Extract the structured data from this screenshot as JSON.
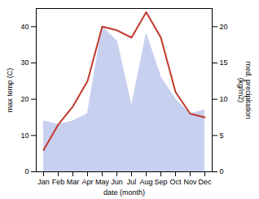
{
  "chart_data": {
    "type": "line",
    "categories": [
      "Jan",
      "Feb",
      "Mar",
      "Apr",
      "May",
      "Jun",
      "Jul",
      "Aug",
      "Sep",
      "Oct",
      "Nov",
      "Dec"
    ],
    "xlabel": "date (month)",
    "ylabel": "max temp (C)",
    "y2label": "med. precipitation\n(kg/m2)",
    "ylim": [
      0,
      45
    ],
    "yticks": [
      0,
      10,
      20,
      30,
      40
    ],
    "y2lim": [
      0,
      22.5
    ],
    "y2ticks": [
      0,
      5,
      10,
      15,
      20
    ],
    "grid": false,
    "series": [
      {
        "type": "area",
        "axis": "y2",
        "color": "#c8d0f0",
        "values": [
          7,
          6.5,
          7,
          8,
          20,
          18,
          9,
          19,
          13,
          10,
          8,
          8.5
        ]
      },
      {
        "type": "line",
        "color": "#c0392b",
        "values": [
          6,
          13,
          18,
          25,
          40,
          39,
          37,
          44,
          37,
          22,
          16,
          15
        ]
      }
    ]
  }
}
